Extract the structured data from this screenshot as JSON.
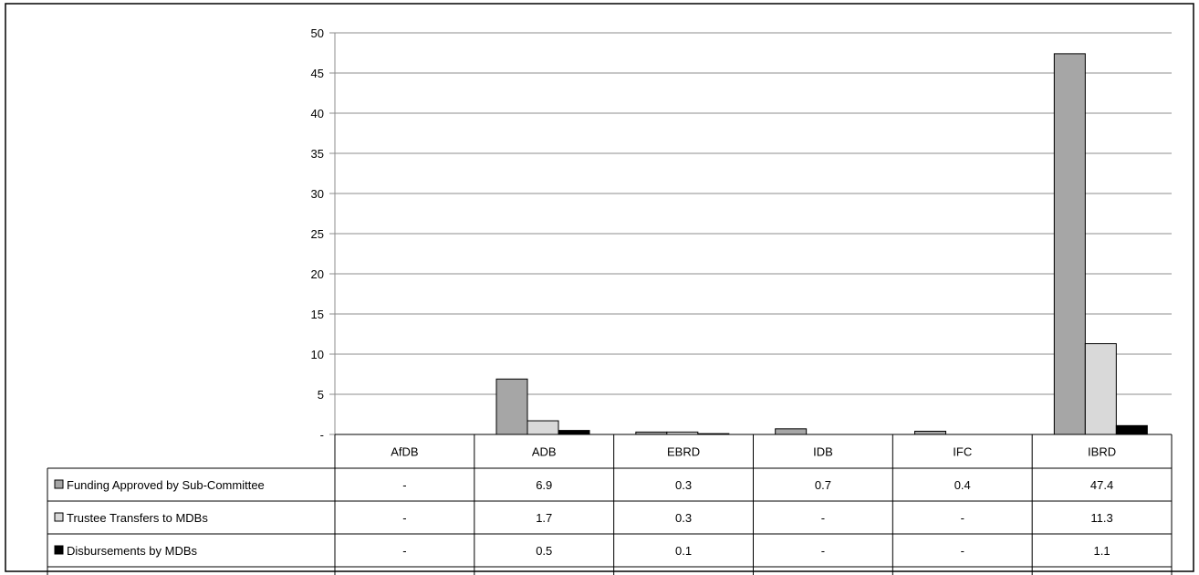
{
  "chart_data": {
    "type": "bar",
    "categories": [
      "AfDB",
      "ADB",
      "EBRD",
      "IDB",
      "IFC",
      "IBRD"
    ],
    "series": [
      {
        "name": "Funding Approved by Sub-Committee",
        "values": [
          0,
          6.9,
          0.3,
          0.7,
          0.4,
          47.4
        ],
        "labels": [
          "-",
          "6.9",
          "0.3",
          "0.7",
          "0.4",
          "47.4"
        ],
        "color": "#a6a6a6"
      },
      {
        "name": "Trustee Transfers to MDBs",
        "values": [
          0,
          1.7,
          0.3,
          0,
          0,
          11.3
        ],
        "labels": [
          "-",
          "1.7",
          "0.3",
          "-",
          "-",
          "11.3"
        ],
        "color": "#d9d9d9"
      },
      {
        "name": "Disbursements by MDBs",
        "values": [
          0,
          0.5,
          0.1,
          0,
          0,
          1.1
        ],
        "labels": [
          "-",
          "0.5",
          "0.1",
          "-",
          "-",
          "1.1"
        ],
        "color": "#000000"
      }
    ],
    "ylim": [
      0,
      50
    ],
    "yticks": [
      "-",
      "5",
      "10",
      "15",
      "20",
      "25",
      "30",
      "35",
      "40",
      "45",
      "50"
    ],
    "grid": true,
    "legend": "data-table"
  }
}
